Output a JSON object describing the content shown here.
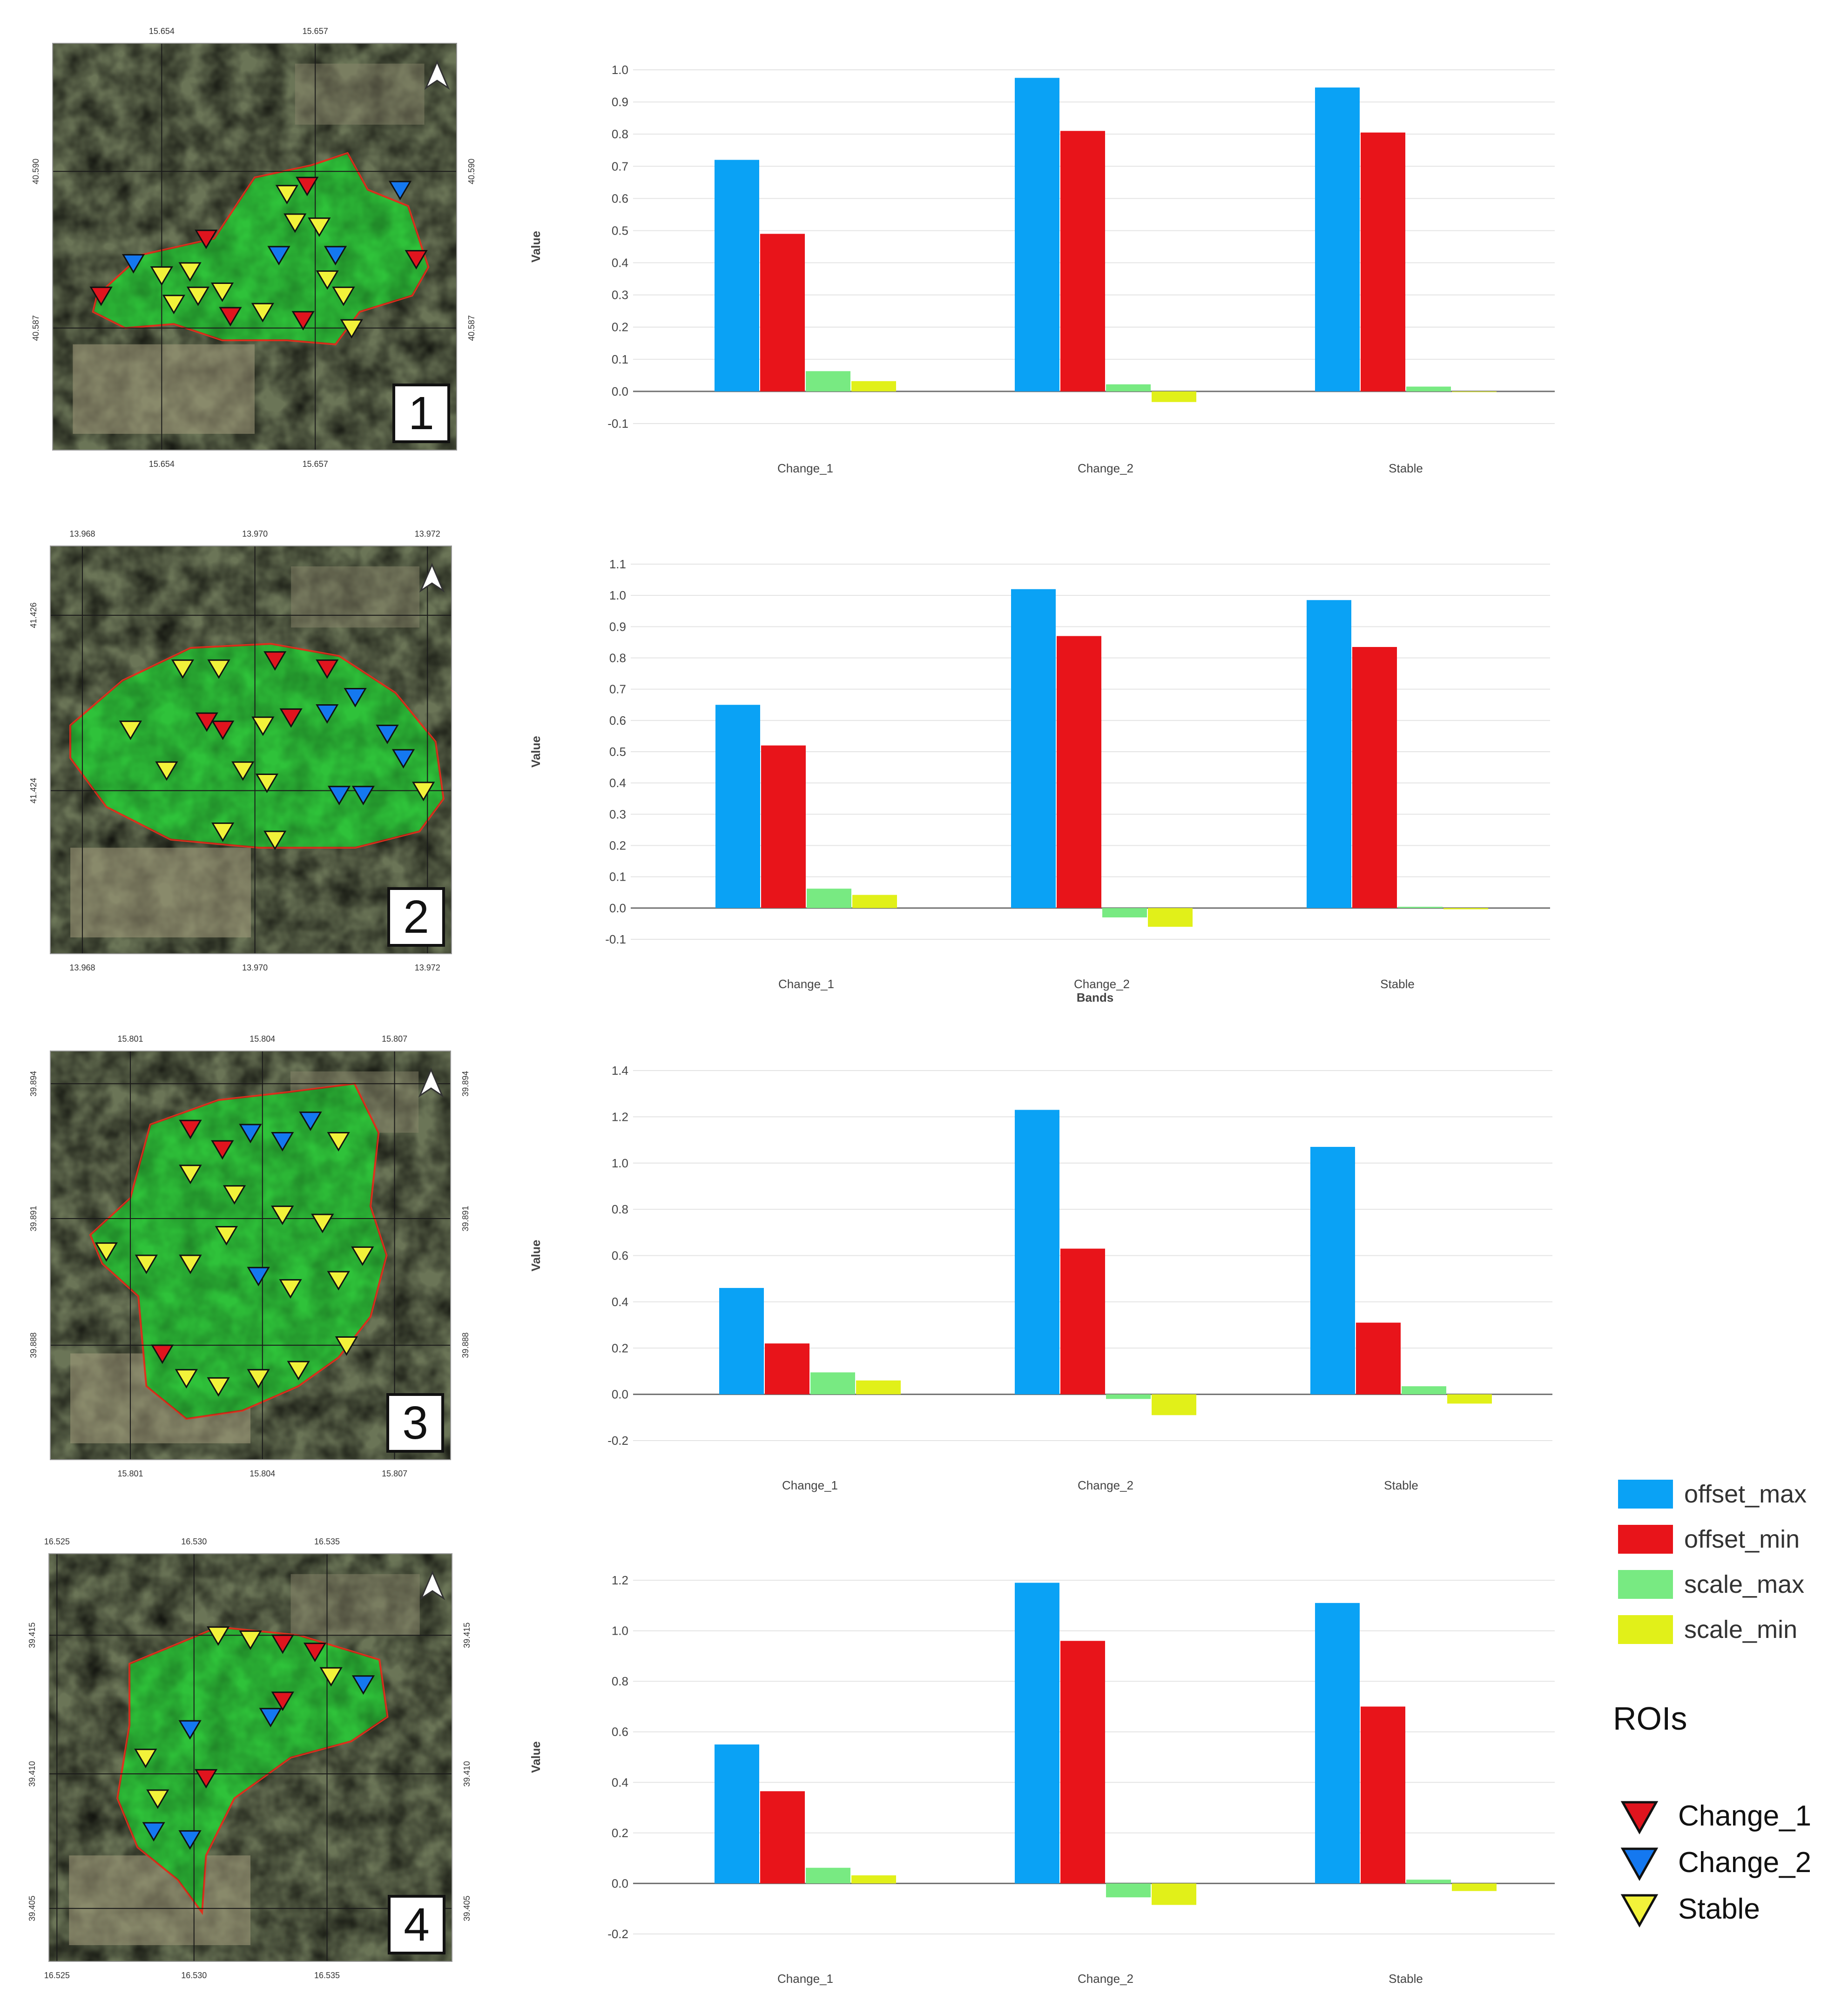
{
  "colors": {
    "offset_max": "#0aa2f5",
    "offset_min": "#e8141a",
    "scale_max": "#78ea82",
    "scale_min": "#e1f019",
    "grid": "#e4e4e4",
    "axis": "#6f6f6f",
    "text": "#444444"
  },
  "legend": {
    "series": [
      "offset_max",
      "offset_min",
      "scale_max",
      "scale_min"
    ],
    "rois_title": "ROIs",
    "rois": [
      {
        "label": "Change_1",
        "color": "#e0141e"
      },
      {
        "label": "Change_2",
        "color": "#1478f0"
      },
      {
        "label": "Stable",
        "color": "#f2f23a"
      }
    ]
  },
  "maps": [
    {
      "number": "1",
      "top_ticks": [
        "15.654",
        "15.657"
      ],
      "bottom_ticks": [
        "15.654",
        "15.657"
      ],
      "left_ticks": [
        "40.590",
        "40.587"
      ],
      "right_ticks": [
        "40.590",
        "40.587"
      ]
    },
    {
      "number": "2",
      "top_ticks": [
        "13.968",
        "13.970",
        "13.972"
      ],
      "bottom_ticks": [
        "13.968",
        "13.970",
        "13.972"
      ],
      "left_ticks": [
        "41.426",
        "41.424"
      ],
      "right_ticks": []
    },
    {
      "number": "3",
      "top_ticks": [
        "15.801",
        "15.804",
        "15.807"
      ],
      "bottom_ticks": [
        "15.801",
        "15.804",
        "15.807"
      ],
      "left_ticks": [
        "39.894",
        "39.891",
        "39.888"
      ],
      "right_ticks": [
        "39.894",
        "39.891",
        "39.888"
      ]
    },
    {
      "number": "4",
      "top_ticks": [
        "16.525",
        "16.530",
        "16.535"
      ],
      "bottom_ticks": [
        "16.525",
        "16.530",
        "16.535"
      ],
      "left_ticks": [
        "39.415",
        "39.410",
        "39.405"
      ],
      "right_ticks": [
        "39.415",
        "39.410",
        "39.405"
      ]
    }
  ],
  "chart_data": [
    {
      "type": "bar",
      "panel": "1",
      "categories": [
        "Change_1",
        "Change_2",
        "Stable"
      ],
      "series": [
        {
          "name": "offset_max",
          "values": [
            0.72,
            0.975,
            0.945
          ]
        },
        {
          "name": "offset_min",
          "values": [
            0.49,
            0.81,
            0.805
          ]
        },
        {
          "name": "scale_max",
          "values": [
            0.063,
            0.022,
            0.015
          ]
        },
        {
          "name": "scale_min",
          "values": [
            0.032,
            -0.033,
            -0.002
          ]
        }
      ],
      "ylabel": "Value",
      "xlabel": "",
      "ylim": [
        -0.1,
        1.0
      ],
      "yticks": [
        "-0.1",
        "0.0",
        "0.1",
        "0.2",
        "0.3",
        "0.4",
        "0.5",
        "0.6",
        "0.7",
        "0.8",
        "0.9",
        "1.0"
      ]
    },
    {
      "type": "bar",
      "panel": "2",
      "categories": [
        "Change_1",
        "Change_2",
        "Stable"
      ],
      "series": [
        {
          "name": "offset_max",
          "values": [
            0.65,
            1.02,
            0.985
          ]
        },
        {
          "name": "offset_min",
          "values": [
            0.52,
            0.87,
            0.835
          ]
        },
        {
          "name": "scale_max",
          "values": [
            0.062,
            -0.03,
            0.004
          ]
        },
        {
          "name": "scale_min",
          "values": [
            0.042,
            -0.06,
            -0.004
          ]
        }
      ],
      "ylabel": "Value",
      "xlabel": "Bands",
      "ylim": [
        -0.1,
        1.1
      ],
      "yticks": [
        "-0.1",
        "0.0",
        "0.1",
        "0.2",
        "0.3",
        "0.4",
        "0.5",
        "0.6",
        "0.7",
        "0.8",
        "0.9",
        "1.0",
        "1.1"
      ]
    },
    {
      "type": "bar",
      "panel": "3",
      "categories": [
        "Change_1",
        "Change_2",
        "Stable"
      ],
      "series": [
        {
          "name": "offset_max",
          "values": [
            0.46,
            1.23,
            1.07
          ]
        },
        {
          "name": "offset_min",
          "values": [
            0.22,
            0.63,
            0.31
          ]
        },
        {
          "name": "scale_max",
          "values": [
            0.095,
            -0.02,
            0.035
          ]
        },
        {
          "name": "scale_min",
          "values": [
            0.06,
            -0.09,
            -0.04
          ]
        }
      ],
      "ylabel": "Value",
      "xlabel": "",
      "ylim": [
        -0.2,
        1.4
      ],
      "yticks": [
        "-0.2",
        "0.0",
        "0.2",
        "0.4",
        "0.6",
        "0.8",
        "1.0",
        "1.2",
        "1.4"
      ]
    },
    {
      "type": "bar",
      "panel": "4",
      "categories": [
        "Change_1",
        "Change_2",
        "Stable"
      ],
      "series": [
        {
          "name": "offset_max",
          "values": [
            0.55,
            1.19,
            1.11
          ]
        },
        {
          "name": "offset_min",
          "values": [
            0.365,
            0.96,
            0.7
          ]
        },
        {
          "name": "scale_max",
          "values": [
            0.062,
            -0.055,
            0.015
          ]
        },
        {
          "name": "scale_min",
          "values": [
            0.032,
            -0.085,
            -0.03
          ]
        }
      ],
      "ylabel": "Value",
      "xlabel": "",
      "ylim": [
        -0.2,
        1.2
      ],
      "yticks": [
        "-0.2",
        "0.0",
        "0.2",
        "0.4",
        "0.6",
        "0.8",
        "1.0",
        "1.2"
      ]
    }
  ]
}
